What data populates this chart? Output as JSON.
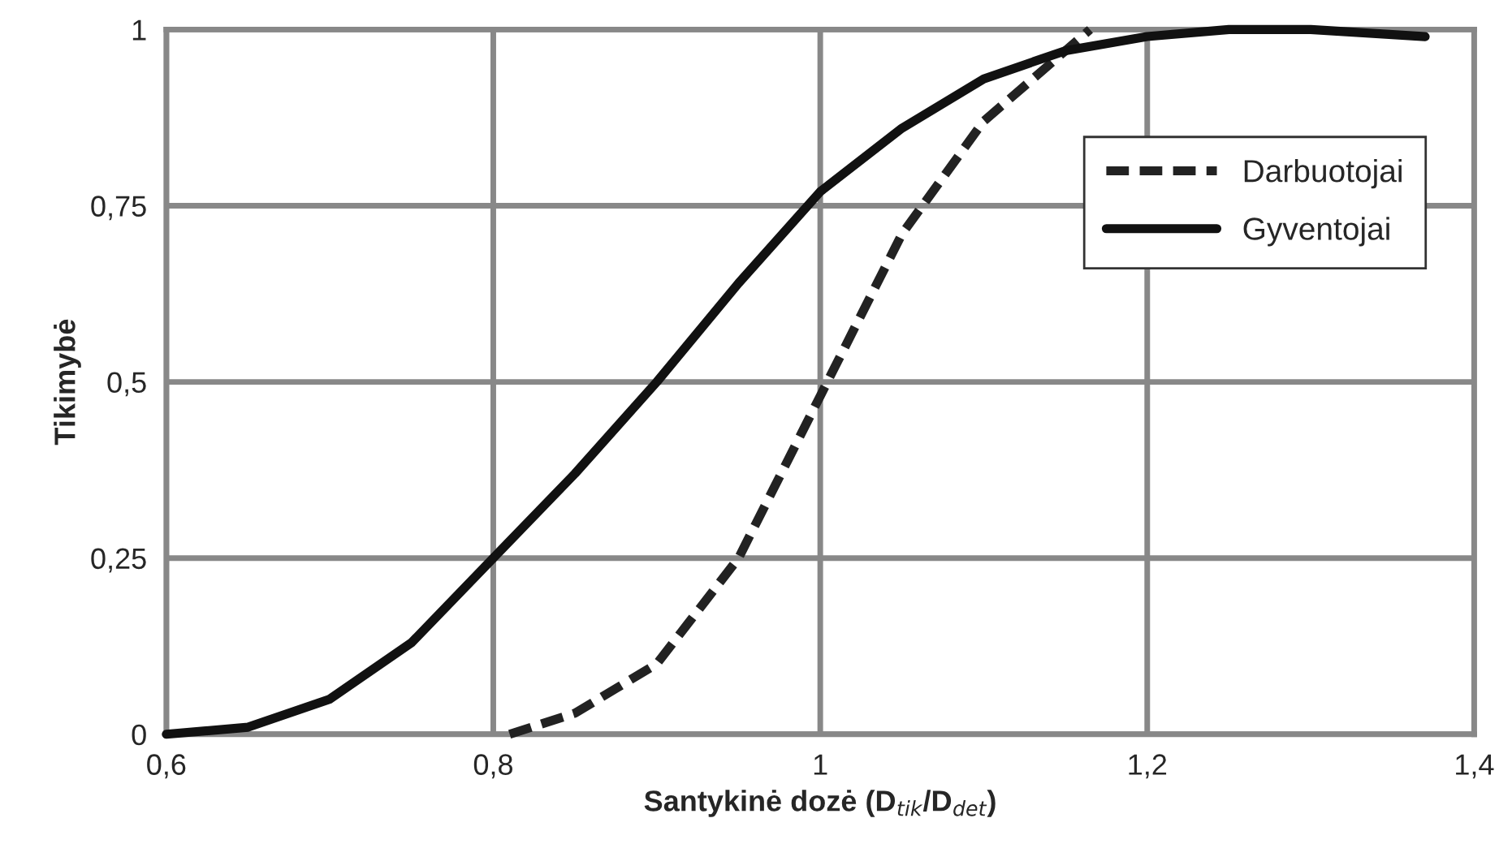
{
  "chart_data": {
    "type": "line",
    "xlabel": "Santykinė dozė (D$_{tik}$/D$_{det}$)",
    "ylabel": "Tikimybė",
    "xlim": [
      0.6,
      1.4
    ],
    "xticks": [
      {
        "value": 0.6,
        "label": "0,6"
      },
      {
        "value": 0.8,
        "label": "0,8"
      },
      1,
      {
        "value": 1.2,
        "label": "1,2"
      },
      {
        "value": 1.4,
        "label": "1,4"
      }
    ],
    "ylim": [
      0,
      1
    ],
    "yticks": [
      0,
      {
        "value": 0.25,
        "label": "0,25"
      },
      {
        "value": 0.5,
        "label": "0,5"
      },
      {
        "value": 0.75,
        "label": "0,75"
      },
      1
    ],
    "grid": true,
    "legend": "top right",
    "series": [
      {
        "name": "Darbuotojai",
        "color": "#222222",
        "line_style": "dashed",
        "x": [
          0.81,
          0.85,
          0.9,
          0.95,
          1.0,
          1.05,
          1.1,
          1.15,
          1.165
        ],
        "values": [
          0,
          0.03,
          0.1,
          0.25,
          0.48,
          0.71,
          0.87,
          0.97,
          1.0
        ]
      },
      {
        "name": "Gyventojai",
        "color": "#111111",
        "line_style": "solid",
        "x": [
          0.6,
          0.65,
          0.7,
          0.75,
          0.8,
          0.85,
          0.9,
          0.95,
          1.0,
          1.05,
          1.1,
          1.15,
          1.2,
          1.25,
          1.3,
          1.37
        ],
        "values": [
          0,
          0.01,
          0.05,
          0.13,
          0.25,
          0.37,
          0.5,
          0.64,
          0.77,
          0.86,
          0.93,
          0.97,
          0.99,
          1.0,
          1.0,
          0.99
        ]
      }
    ]
  }
}
